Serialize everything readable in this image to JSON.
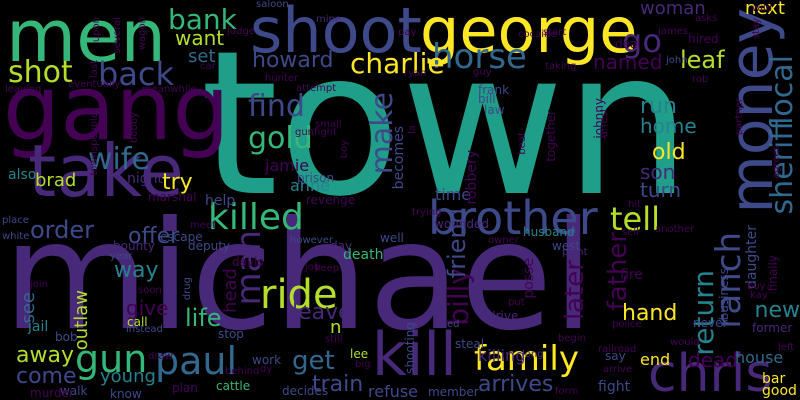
{
  "palette": {
    "background": "#000000",
    "teal": "#1f9e89",
    "purple_dark": "#440154",
    "indigo": "#482878",
    "blue_violet": "#3e4989",
    "blue": "#31688e",
    "blue_teal": "#26828e",
    "green": "#35b779",
    "lime": "#b5de2b",
    "yellow": "#fde725"
  },
  "words": [
    {
      "text": "town",
      "color": "#1f9e89"
    },
    {
      "text": "michael",
      "color": "#482878"
    },
    {
      "text": "gang",
      "color": "#440154"
    },
    {
      "text": "men",
      "color": "#35b779"
    },
    {
      "text": "george",
      "color": "#fde725"
    },
    {
      "text": "shoot",
      "color": "#3e4989"
    },
    {
      "text": "take",
      "color": "#482878"
    },
    {
      "text": "money",
      "color": "#3e4989"
    },
    {
      "text": "kill",
      "color": "#482878"
    },
    {
      "text": "chris",
      "color": "#482878"
    },
    {
      "text": "brother",
      "color": "#3e4989"
    },
    {
      "text": "killed",
      "color": "#35b779"
    },
    {
      "text": "paul",
      "color": "#31688e"
    },
    {
      "text": "gun",
      "color": "#35b779"
    },
    {
      "text": "family",
      "color": "#fde725"
    },
    {
      "text": "tell",
      "color": "#b5de2b"
    },
    {
      "text": "ride",
      "color": "#b5de2b"
    },
    {
      "text": "man",
      "color": "#482878"
    },
    {
      "text": "horse",
      "color": "#31688e"
    },
    {
      "text": "back",
      "color": "#3e4989"
    },
    {
      "text": "shot",
      "color": "#b5de2b"
    },
    {
      "text": "bank",
      "color": "#35b779"
    },
    {
      "text": "go",
      "color": "#482878"
    },
    {
      "text": "sheriff",
      "color": "#31688e"
    },
    {
      "text": "local",
      "color": "#31688e"
    },
    {
      "text": "ranch",
      "color": "#3e4989"
    },
    {
      "text": "wife",
      "color": "#31688e"
    },
    {
      "text": "find",
      "color": "#3e4989"
    },
    {
      "text": "gold",
      "color": "#35b779"
    },
    {
      "text": "make",
      "color": "#3e4989"
    },
    {
      "text": "charlie",
      "color": "#fde725"
    },
    {
      "text": "howard",
      "color": "#3e4989"
    },
    {
      "text": "leaf",
      "color": "#b5de2b"
    },
    {
      "text": "named",
      "color": "#440154"
    },
    {
      "text": "want",
      "color": "#b5de2b"
    },
    {
      "text": "set",
      "color": "#31688e"
    },
    {
      "text": "woman",
      "color": "#482878"
    },
    {
      "text": "next",
      "color": "#fde725"
    },
    {
      "text": "father",
      "color": "#440154"
    },
    {
      "text": "return",
      "color": "#26828e"
    },
    {
      "text": "get",
      "color": "#31688e"
    },
    {
      "text": "billy",
      "color": "#440154"
    },
    {
      "text": "friend",
      "color": "#3e4989"
    },
    {
      "text": "later",
      "color": "#440154"
    },
    {
      "text": "old",
      "color": "#fde725"
    },
    {
      "text": "son",
      "color": "#482878"
    },
    {
      "text": "turn",
      "color": "#3e4989"
    },
    {
      "text": "run",
      "color": "#26828e"
    },
    {
      "text": "home",
      "color": "#26828e"
    },
    {
      "text": "try",
      "color": "#fde725"
    },
    {
      "text": "brad",
      "color": "#b5de2b"
    },
    {
      "text": "order",
      "color": "#3e4989"
    },
    {
      "text": "offer",
      "color": "#3e4989"
    },
    {
      "text": "way",
      "color": "#26828e"
    },
    {
      "text": "life",
      "color": "#35b779"
    },
    {
      "text": "leave",
      "color": "#482878"
    },
    {
      "text": "give",
      "color": "#440154"
    },
    {
      "text": "outlaw",
      "color": "#b5de2b"
    },
    {
      "text": "see",
      "color": "#31688e"
    },
    {
      "text": "away",
      "color": "#b5de2b"
    },
    {
      "text": "come",
      "color": "#3e4989"
    },
    {
      "text": "young",
      "color": "#26828e"
    },
    {
      "text": "train",
      "color": "#3e4989"
    },
    {
      "text": "arrives",
      "color": "#3e4989"
    },
    {
      "text": "hand",
      "color": "#fde725"
    },
    {
      "text": "new",
      "color": "#26828e"
    },
    {
      "text": "dead",
      "color": "#440154"
    },
    {
      "text": "house",
      "color": "#31688e"
    },
    {
      "text": "end",
      "color": "#fde725"
    },
    {
      "text": "time",
      "color": "#3e4989"
    },
    {
      "text": "jamie",
      "color": "#440154"
    },
    {
      "text": "anne",
      "color": "#26828e"
    },
    {
      "text": "help",
      "color": "#3e4989"
    },
    {
      "text": "night",
      "color": "#482878"
    },
    {
      "text": "also",
      "color": "#26828e"
    },
    {
      "text": "jail",
      "color": "#26828e"
    },
    {
      "text": "head",
      "color": "#440154"
    },
    {
      "text": "n",
      "color": "#b5de2b"
    },
    {
      "text": "killing",
      "color": "#482878"
    },
    {
      "text": "refuse",
      "color": "#3e4989"
    },
    {
      "text": "fight",
      "color": "#3e4989"
    },
    {
      "text": "bar",
      "color": "#fde725"
    },
    {
      "text": "good",
      "color": "#fde725"
    },
    {
      "text": "robbery",
      "color": "#440154"
    },
    {
      "text": "becomes",
      "color": "#3e4989"
    },
    {
      "text": "posse",
      "color": "#440154"
    },
    {
      "text": "wounded",
      "color": "#482878"
    },
    {
      "text": "husband",
      "color": "#26828e"
    },
    {
      "text": "death",
      "color": "#35b779"
    },
    {
      "text": "well",
      "color": "#3e4989"
    },
    {
      "text": "west",
      "color": "#3e4989"
    },
    {
      "text": "point",
      "color": "#482878"
    },
    {
      "text": "drive",
      "color": "#482878"
    },
    {
      "text": "fire",
      "color": "#440154"
    },
    {
      "text": "daughter",
      "color": "#3e4989"
    },
    {
      "text": "business",
      "color": "#3e4989"
    },
    {
      "text": "finally",
      "color": "#440154"
    },
    {
      "text": "never",
      "color": "#3e4989"
    },
    {
      "text": "former",
      "color": "#482878"
    },
    {
      "text": "stop",
      "color": "#3e4989"
    },
    {
      "text": "call",
      "color": "#b5de2b"
    },
    {
      "text": "instead",
      "color": "#3e4989"
    },
    {
      "text": "bob",
      "color": "#3e4989"
    },
    {
      "text": "walk",
      "color": "#3e4989"
    },
    {
      "text": "murder",
      "color": "#440154"
    },
    {
      "text": "know",
      "color": "#3e4989"
    },
    {
      "text": "plan",
      "color": "#440154"
    },
    {
      "text": "cattle",
      "color": "#35b779"
    },
    {
      "text": "decides",
      "color": "#3e4989"
    },
    {
      "text": "member",
      "color": "#3e4989"
    },
    {
      "text": "say",
      "color": "#3e4989"
    },
    {
      "text": "would",
      "color": "#440154"
    },
    {
      "text": "work",
      "color": "#3e4989"
    },
    {
      "text": "behind",
      "color": "#440154"
    },
    {
      "text": "lee",
      "color": "#b5de2b"
    },
    {
      "text": "big",
      "color": "#440154"
    },
    {
      "text": "still",
      "color": "#440154"
    },
    {
      "text": "steal",
      "color": "#3e4989"
    },
    {
      "text": "shooting",
      "color": "#3e4989"
    },
    {
      "text": "put",
      "color": "#440154"
    },
    {
      "text": "ed",
      "color": "#3e4989"
    },
    {
      "text": "job",
      "color": "#440154"
    },
    {
      "text": "keep",
      "color": "#440154"
    },
    {
      "text": "day",
      "color": "#482878"
    },
    {
      "text": "however",
      "color": "#3e4989"
    },
    {
      "text": "davis",
      "color": "#440154"
    },
    {
      "text": "deputy",
      "color": "#3e4989"
    },
    {
      "text": "escape",
      "color": "#3e4989"
    },
    {
      "text": "meet",
      "color": "#440154"
    },
    {
      "text": "bounty",
      "color": "#482878"
    },
    {
      "text": "year",
      "color": "#3e4989"
    },
    {
      "text": "soon",
      "color": "#440154"
    },
    {
      "text": "drug",
      "color": "#3e4989"
    },
    {
      "text": "revenge",
      "color": "#440154"
    },
    {
      "text": "prison",
      "color": "#3e4989"
    },
    {
      "text": "marshal",
      "color": "#440154"
    },
    {
      "text": "white",
      "color": "#3e4989"
    },
    {
      "text": "place",
      "color": "#3e4989"
    },
    {
      "text": "join",
      "color": "#440154"
    },
    {
      "text": "long",
      "color": "#482878"
    },
    {
      "text": "mine",
      "color": "#482878"
    },
    {
      "text": "saloon",
      "color": "#3e4989"
    },
    {
      "text": "judge",
      "color": "#440154"
    },
    {
      "text": "car",
      "color": "#440154"
    },
    {
      "text": "hunter",
      "color": "#440154"
    },
    {
      "text": "attempt",
      "color": "#440154"
    },
    {
      "text": "gunfight",
      "color": "#440154"
    },
    {
      "text": "small",
      "color": "#440154"
    },
    {
      "text": "ryan",
      "color": "#440154"
    },
    {
      "text": "frank",
      "color": "#3e4989"
    },
    {
      "text": "bill",
      "color": "#3e4989"
    },
    {
      "text": "law",
      "color": "#3e4989"
    },
    {
      "text": "john",
      "color": "#3e4989"
    },
    {
      "text": "taking",
      "color": "#440154"
    },
    {
      "text": "guy",
      "color": "#440154"
    },
    {
      "text": "together",
      "color": "#440154"
    },
    {
      "text": "johnny",
      "color": "#440154"
    },
    {
      "text": "rob",
      "color": "#440154"
    },
    {
      "text": "pay",
      "color": "#440154"
    },
    {
      "text": "start",
      "color": "#440154"
    },
    {
      "text": "cocaine",
      "color": "#440154"
    },
    {
      "text": "deal",
      "color": "#440154"
    },
    {
      "text": "james",
      "color": "#440154"
    },
    {
      "text": "hired",
      "color": "#440154"
    },
    {
      "text": "asks",
      "color": "#440154"
    },
    {
      "text": "wild",
      "color": "#440154"
    },
    {
      "text": "stay",
      "color": "#440154"
    },
    {
      "text": "upon",
      "color": "#440154"
    },
    {
      "text": "several",
      "color": "#440154"
    },
    {
      "text": "wagon",
      "color": "#440154"
    },
    {
      "text": "last",
      "color": "#440154"
    },
    {
      "text": "leaving",
      "color": "#440154"
    },
    {
      "text": "eventually",
      "color": "#440154"
    },
    {
      "text": "meanwhile",
      "color": "#440154"
    },
    {
      "text": "townspeople",
      "color": "#440154"
    },
    {
      "text": "bobby",
      "color": "#440154"
    },
    {
      "text": "boy",
      "color": "#440154"
    },
    {
      "text": "la",
      "color": "#440154"
    },
    {
      "text": "beat",
      "color": "#440154"
    },
    {
      "text": "arrest",
      "color": "#440154"
    },
    {
      "text": "partner",
      "color": "#440154"
    },
    {
      "text": "agrees",
      "color": "#440154"
    },
    {
      "text": "hit",
      "color": "#440154"
    },
    {
      "text": "sell",
      "color": "#440154"
    },
    {
      "text": "another",
      "color": "#440154"
    },
    {
      "text": "trying",
      "color": "#440154"
    },
    {
      "text": "owner",
      "color": "#440154"
    },
    {
      "text": "buy",
      "color": "#440154"
    },
    {
      "text": "kay",
      "color": "#440154"
    },
    {
      "text": "left",
      "color": "#440154"
    },
    {
      "text": "police",
      "color": "#440154"
    },
    {
      "text": "railroad",
      "color": "#440154"
    },
    {
      "text": "arrive",
      "color": "#440154"
    },
    {
      "text": "begin",
      "color": "#440154"
    },
    {
      "text": "form",
      "color": "#440154"
    },
    {
      "text": "draw",
      "color": "#440154"
    },
    {
      "text": "dy",
      "color": "#440154"
    },
    {
      "text": "cowboy",
      "color": "#440154"
    }
  ]
}
